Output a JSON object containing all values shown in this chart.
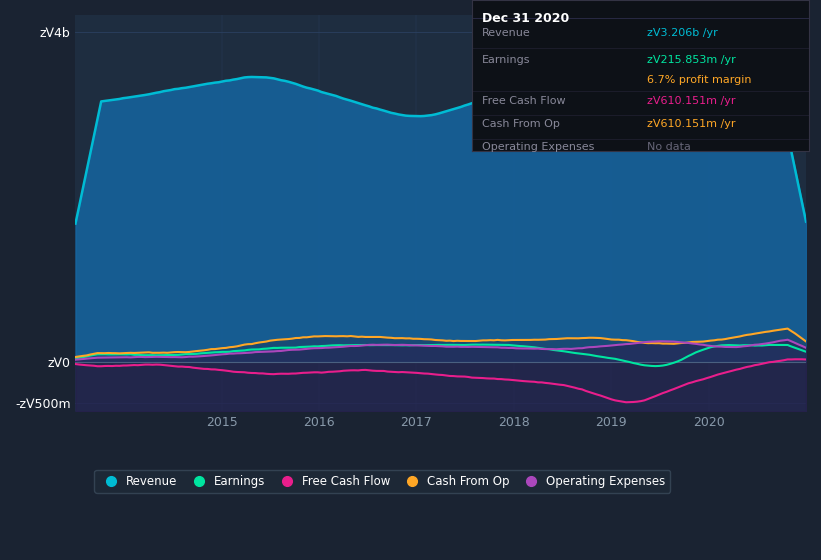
{
  "bg_color": "#1a2332",
  "plot_bg_color": "#1e2d40",
  "title": "Dec 31 2020",
  "tooltip_bg": "#0d1117",
  "y_label_4b": "zᐯ4b",
  "y_label_0": "zᐯ0",
  "y_label_neg500m": "-zᐯ500m",
  "x_ticks": [
    2015,
    2016,
    2017,
    2018,
    2019,
    2020
  ],
  "ylim": [
    -600000000,
    4200000000
  ],
  "revenue_color": "#00bcd4",
  "earnings_color": "#00e5a0",
  "free_cash_flow_color": "#e91e8c",
  "cash_from_op_color": "#ffa726",
  "op_expenses_color": "#ab47bc",
  "revenue_fill_color": "#1565a0",
  "legend_items": [
    "Revenue",
    "Earnings",
    "Free Cash Flow",
    "Cash From Op",
    "Operating Expenses"
  ],
  "legend_colors": [
    "#00bcd4",
    "#00e5a0",
    "#e91e8c",
    "#ffa726",
    "#ab47bc"
  ],
  "tooltip": {
    "date": "Dec 31 2020",
    "revenue": "zᐯ3.206b /yr",
    "earnings": "zᐯ215.853m /yr",
    "profit_margin": "6.7% profit margin",
    "free_cash_flow": "zᐯ610.151m /yr",
    "cash_from_op": "zᐯ610.151m /yr",
    "op_expenses": "No data"
  }
}
